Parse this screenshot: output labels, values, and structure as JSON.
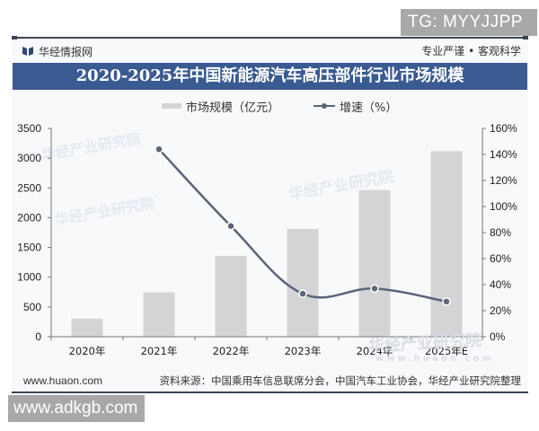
{
  "badges": {
    "telegram": "TG: MYYJJPP",
    "site": "www.adkgb.com"
  },
  "header": {
    "brand": "华经情报网",
    "slogan": "专业严谨 • 客观科学",
    "title": "2020-2025年中国新能源汽车高压部件行业市场规模"
  },
  "legend": {
    "bar_label": "市场规模（亿元）",
    "line_label": "增速（%）"
  },
  "footer": {
    "website": "www.huaon.com",
    "source": "资料来源：中国乘用车信息联席分会，中国汽车工业协会，华经产业研究院整理"
  },
  "watermarks": [
    "华经产业研究院",
    "华经产业研究院",
    "华经产业研究院",
    "www.huaon.com"
  ],
  "colors": {
    "title_bar": "#3a5a92",
    "bar": "#d4d4d6",
    "line": "#5b6478",
    "rule": "#3b4556"
  },
  "chart_data": {
    "type": "bar",
    "title": "2020-2025年中国新能源汽车高压部件行业市场规模",
    "categories": [
      "2020年",
      "2021年",
      "2022年",
      "2023年",
      "2024年",
      "2025年E"
    ],
    "series": [
      {
        "name": "市场规模（亿元）",
        "type": "bar",
        "axis": "left",
        "values": [
          303,
          747,
          1357,
          1810,
          2463,
          3118
        ]
      },
      {
        "name": "增速（%）",
        "type": "line",
        "axis": "right",
        "values": [
          null,
          144,
          85,
          33,
          37,
          27
        ]
      }
    ],
    "xlabel": "",
    "ylabel": "",
    "ylim": [
      0,
      3500
    ],
    "y_ticks": [
      0,
      500,
      1000,
      1500,
      2000,
      2500,
      3000,
      3500
    ],
    "y2lim": [
      0,
      160
    ],
    "y2_ticks": [
      "0%",
      "20%",
      "40%",
      "60%",
      "80%",
      "100%",
      "120%",
      "140%",
      "160%"
    ],
    "legend_position": "top",
    "grid": false
  }
}
